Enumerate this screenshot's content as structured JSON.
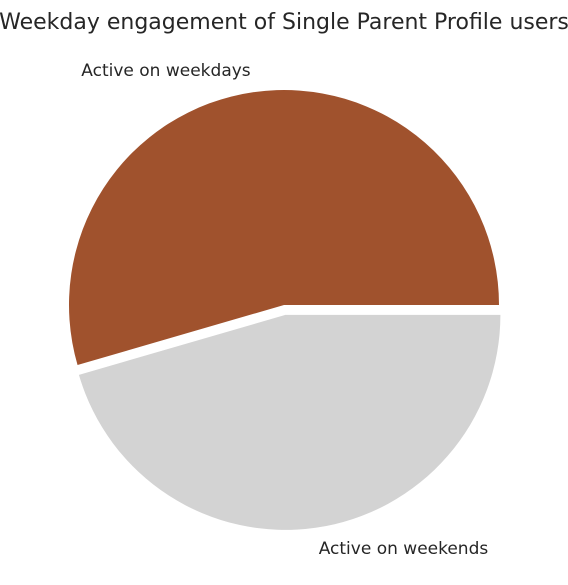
{
  "chart_data": {
    "type": "pie",
    "title": "Weekday engagement of Single Parent Profile users",
    "labels": [
      "Active on weekdays",
      "Active on weekends"
    ],
    "values": [
      54.5,
      45.5
    ],
    "colors": [
      "#A0522D",
      "#D3D3D3"
    ],
    "exploded": [
      0,
      1
    ],
    "start_angle_deg": 0,
    "direction": "counterclockwise",
    "legend": "none"
  }
}
